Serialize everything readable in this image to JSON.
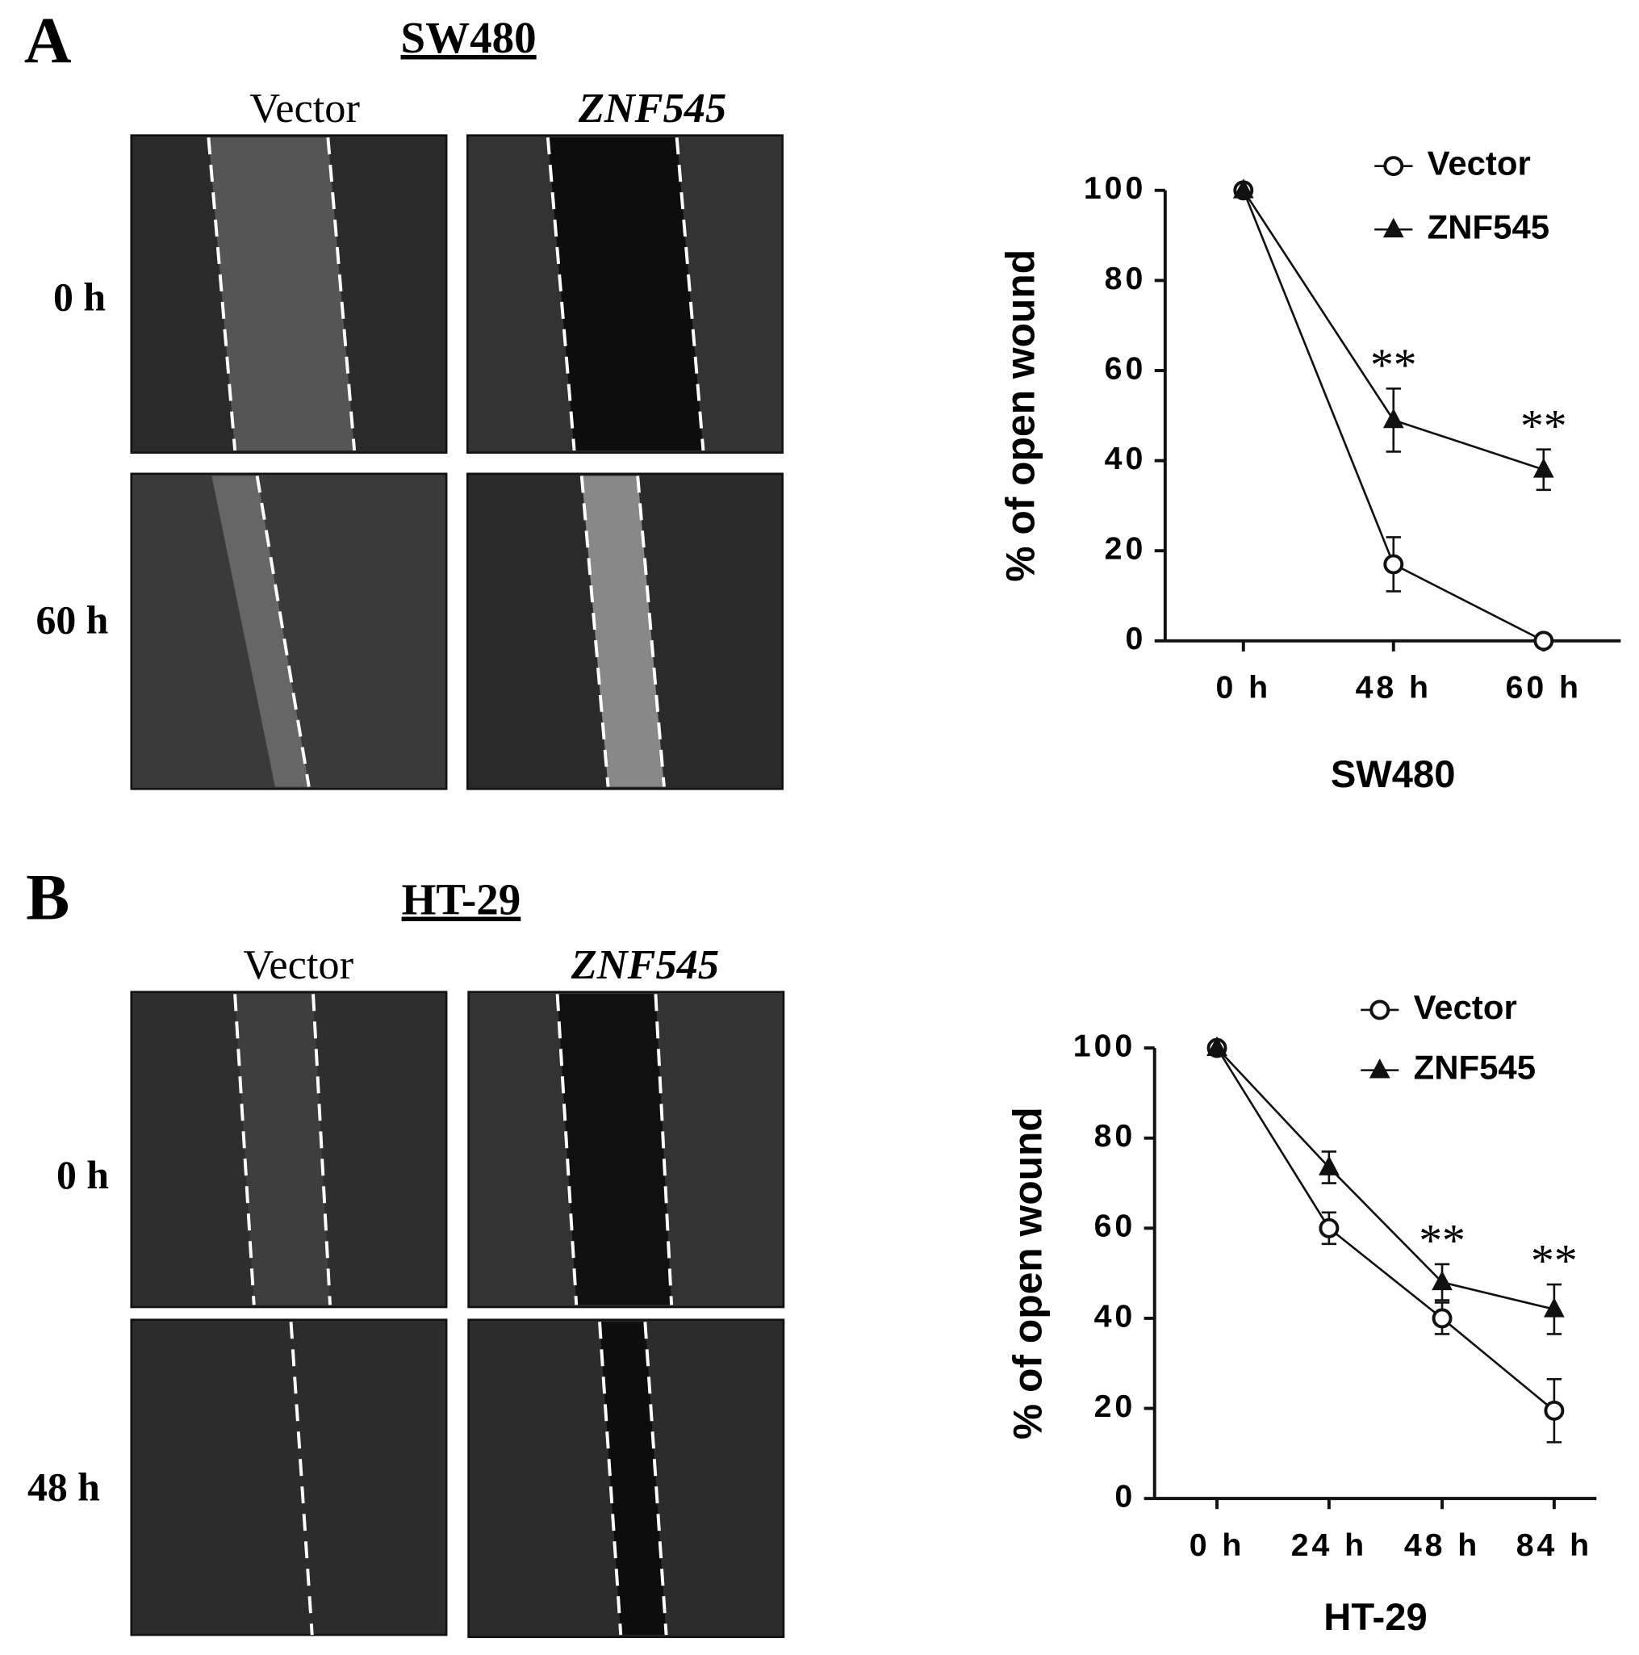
{
  "figure": {
    "panels": [
      {
        "label": "A",
        "title": "SW480",
        "columns": [
          "Vector",
          "ZNF545"
        ],
        "rows": [
          "0 h",
          "60 h"
        ]
      },
      {
        "label": "B",
        "title": "HT-29",
        "columns": [
          "Vector",
          "ZNF545"
        ],
        "rows": [
          "0 h",
          "48 h"
        ]
      }
    ]
  },
  "chart_data": [
    {
      "type": "line",
      "xlabel": "SW480",
      "ylabel": "% of open wound",
      "categories": [
        "0 h",
        "48 h",
        "60 h"
      ],
      "ylim": [
        0,
        100
      ],
      "yticks": [
        0,
        20,
        40,
        60,
        80,
        100
      ],
      "series": [
        {
          "name": "Vector",
          "color": "#111111",
          "marker": "circle",
          "values": [
            100,
            17,
            0
          ],
          "errors": [
            0,
            6,
            0
          ]
        },
        {
          "name": "ZNF545",
          "color": "#111111",
          "marker": "triangle",
          "values": [
            100,
            49,
            38
          ],
          "errors": [
            0,
            7,
            4.5
          ]
        }
      ],
      "annotations": [
        {
          "text": "**",
          "x": "48 h"
        },
        {
          "text": "**",
          "x": "60 h"
        }
      ]
    },
    {
      "type": "line",
      "xlabel": "HT-29",
      "ylabel": "% of open wound",
      "categories": [
        "0 h",
        "24 h",
        "48 h",
        "84 h"
      ],
      "ylim": [
        0,
        100
      ],
      "yticks": [
        0,
        20,
        40,
        60,
        80,
        100
      ],
      "series": [
        {
          "name": "Vector",
          "color": "#111111",
          "marker": "circle",
          "values": [
            100,
            60,
            40,
            19.5
          ],
          "errors": [
            0,
            3.5,
            3.5,
            7
          ]
        },
        {
          "name": "ZNF545",
          "color": "#111111",
          "marker": "triangle",
          "values": [
            100,
            73.5,
            48,
            42
          ],
          "errors": [
            0,
            3.5,
            4,
            5.5
          ]
        }
      ],
      "annotations": [
        {
          "text": "**",
          "x": "48 h"
        },
        {
          "text": "**",
          "x": "84 h"
        }
      ]
    }
  ]
}
